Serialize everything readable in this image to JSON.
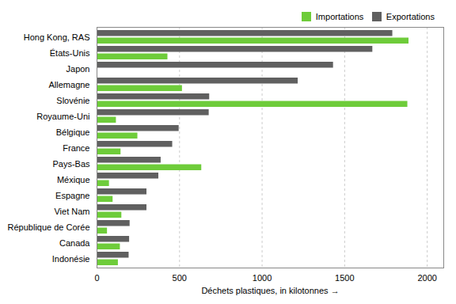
{
  "chart_data": {
    "type": "bar",
    "orientation": "horizontal",
    "categories": [
      "Hong Kong, RAS",
      "États-Unis",
      "Japon",
      "Allemagne",
      "Slovénie",
      "Royaume-Uni",
      "Bélgique",
      "France",
      "Pays-Bas",
      "Méxique",
      "Espagne",
      "Viet Nam",
      "République de Corée",
      "Canada",
      "Indonésie"
    ],
    "series": [
      {
        "name": "Importations",
        "color": "#6ecc3a",
        "values": [
          1889,
          429,
          3,
          517,
          1882,
          117,
          247,
          145,
          634,
          75,
          97,
          150,
          63,
          141,
          129
        ]
      },
      {
        "name": "Exportations",
        "color": "#606060",
        "values": [
          1791,
          1670,
          1432,
          1218,
          682,
          679,
          497,
          458,
          388,
          374,
          302,
          302,
          200,
          197,
          194
        ]
      }
    ],
    "xlabel": "Déchets plastiques, in kilotonnes",
    "xlim": [
      0,
      2100
    ],
    "xticks": [
      0,
      500,
      1000,
      1500,
      2000
    ],
    "grid": true,
    "legend": "upper right"
  }
}
